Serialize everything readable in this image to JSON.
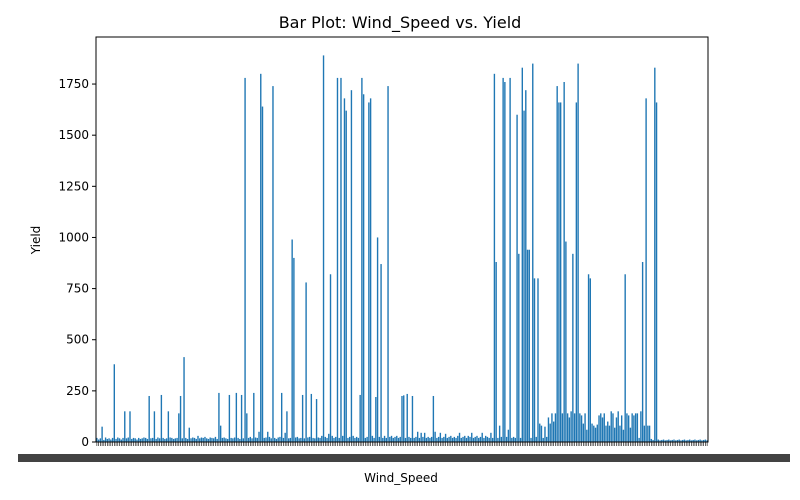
{
  "chart_data": {
    "type": "bar",
    "title": "Bar Plot: Wind_Speed vs. Yield",
    "xlabel": "Wind_Speed",
    "ylabel": "Yield",
    "ylim": [
      0,
      1980
    ],
    "yticks": [
      0,
      250,
      500,
      750,
      1000,
      1250,
      1500,
      1750
    ],
    "ytick_labels": [
      "0",
      "250",
      "500",
      "750",
      "1000",
      "1250",
      "1500",
      "1750"
    ],
    "x_tick_labels_note": "",
    "bar_color": "#1f77b4",
    "grid": false,
    "legend": "none",
    "values": [
      20,
      12,
      18,
      75,
      10,
      22,
      15,
      18,
      12,
      20,
      380,
      15,
      22,
      18,
      12,
      20,
      150,
      18,
      22,
      150,
      15,
      20,
      18,
      12,
      20,
      15,
      18,
      22,
      20,
      15,
      225,
      18,
      20,
      150,
      15,
      22,
      18,
      230,
      20,
      15,
      18,
      150,
      22,
      20,
      15,
      18,
      20,
      140,
      225,
      18,
      415,
      20,
      15,
      70,
      18,
      22,
      20,
      15,
      30,
      18,
      22,
      20,
      25,
      18,
      15,
      22,
      20,
      18,
      25,
      15,
      240,
      80,
      20,
      22,
      18,
      15,
      230,
      20,
      18,
      22,
      240,
      20,
      15,
      230,
      18,
      1780,
      140,
      20,
      25,
      18,
      240,
      22,
      20,
      50,
      1800,
      1640,
      20,
      22,
      50,
      25,
      18,
      1740,
      20,
      15,
      22,
      25,
      240,
      20,
      45,
      150,
      18,
      20,
      990,
      900,
      22,
      25,
      18,
      20,
      230,
      18,
      780,
      22,
      25,
      235,
      20,
      18,
      210,
      22,
      20,
      30,
      1890,
      25,
      20,
      40,
      820,
      30,
      20,
      25,
      1780,
      20,
      1780,
      30,
      1680,
      1620,
      20,
      25,
      1720,
      30,
      20,
      25,
      20,
      230,
      1780,
      1700,
      20,
      25,
      1660,
      1680,
      30,
      20,
      220,
      1000,
      25,
      870,
      20,
      30,
      20,
      1740,
      25,
      30,
      20,
      25,
      30,
      20,
      25,
      225,
      228,
      20,
      235,
      25,
      20,
      225,
      20,
      25,
      50,
      20,
      45,
      25,
      45,
      20,
      25,
      20,
      25,
      225,
      50,
      20,
      25,
      45,
      20,
      25,
      40,
      20,
      25,
      30,
      20,
      25,
      20,
      30,
      45,
      20,
      25,
      30,
      20,
      30,
      25,
      45,
      20,
      25,
      30,
      20,
      25,
      45,
      20,
      30,
      25,
      20,
      45,
      20,
      1800,
      880,
      20,
      80,
      25,
      1780,
      1760,
      25,
      60,
      1780,
      20,
      25,
      20,
      1600,
      920,
      20,
      1830,
      1620,
      1720,
      940,
      940,
      20,
      1850,
      800,
      25,
      800,
      90,
      80,
      20,
      75,
      25,
      120,
      90,
      140,
      100,
      140,
      1740,
      1660,
      1660,
      140,
      1760,
      980,
      140,
      120,
      150,
      920,
      140,
      1660,
      1850,
      140,
      130,
      90,
      140,
      60,
      820,
      800,
      90,
      80,
      70,
      85,
      130,
      140,
      120,
      140,
      80,
      100,
      80,
      150,
      140,
      70,
      120,
      150,
      80,
      130,
      60,
      820,
      140,
      130,
      70,
      140,
      130,
      140,
      140,
      20,
      150,
      880,
      80,
      1680,
      80,
      80,
      15,
      10,
      1830,
      1660,
      12,
      8,
      10,
      12,
      8,
      10,
      12,
      8,
      10,
      12,
      8,
      10,
      12,
      8,
      10,
      12,
      8,
      10,
      12,
      8,
      10,
      12,
      8,
      10,
      12,
      8,
      10,
      12,
      8
    ]
  }
}
